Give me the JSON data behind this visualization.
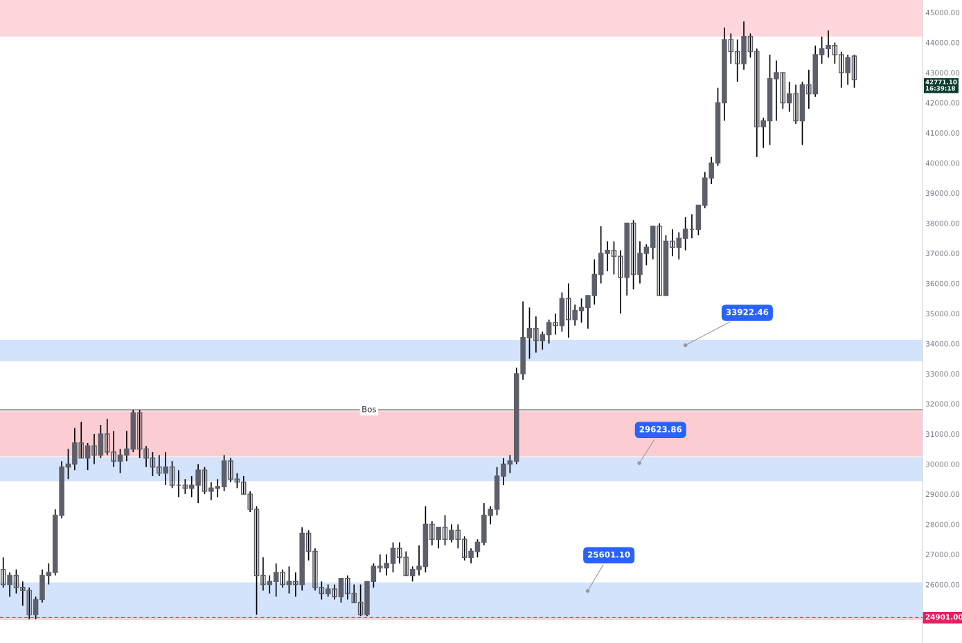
{
  "chart_data": {
    "type": "candlestick",
    "color": "#5d606b",
    "categories": [
      null,
      null,
      null,
      null,
      null,
      null,
      null,
      null,
      null,
      null,
      null,
      null,
      null,
      null,
      null,
      null,
      null,
      null,
      null,
      null,
      null,
      null,
      null,
      null,
      null,
      null,
      null,
      null,
      null,
      null,
      null,
      null,
      null,
      null,
      null,
      null,
      null,
      null,
      null,
      null,
      null,
      null,
      null,
      null,
      null,
      null,
      null,
      null,
      null,
      null,
      null,
      null,
      null,
      null,
      null,
      null,
      null,
      null,
      null,
      null,
      null,
      null,
      null,
      null,
      null,
      null,
      null,
      null,
      null,
      null,
      null,
      null,
      null,
      null,
      null,
      null,
      null,
      null,
      null,
      null,
      null,
      null,
      null,
      null,
      null,
      null,
      null,
      null,
      null,
      null,
      null,
      null,
      null,
      null,
      null,
      null,
      null,
      null,
      null,
      null,
      null,
      null,
      null,
      null,
      null,
      null,
      null,
      null,
      null,
      null,
      null,
      null,
      null,
      null,
      null,
      null,
      null,
      null,
      null,
      null,
      null,
      null,
      null,
      null,
      null,
      null,
      null,
      null,
      null,
      null,
      null,
      null,
      null,
      null,
      null,
      null,
      null,
      null,
      null,
      null,
      null,
      null
    ],
    "ohlc": [
      [
        26500,
        26900,
        25900,
        26000
      ],
      [
        26000,
        26400,
        25600,
        26300
      ],
      [
        26300,
        26500,
        25700,
        25900
      ],
      [
        25900,
        26100,
        25300,
        25800
      ],
      [
        25800,
        25900,
        24850,
        25000
      ],
      [
        25000,
        25600,
        24850,
        25500
      ],
      [
        25500,
        26500,
        25400,
        26300
      ],
      [
        26300,
        26700,
        26000,
        26400
      ],
      [
        26400,
        28500,
        26300,
        28300
      ],
      [
        28300,
        30100,
        28200,
        29900
      ],
      [
        29900,
        30500,
        29500,
        30000
      ],
      [
        30000,
        31200,
        29800,
        30700
      ],
      [
        30700,
        31400,
        30200,
        30200
      ],
      [
        30200,
        30700,
        29800,
        30600
      ],
      [
        30600,
        31000,
        30000,
        30300
      ],
      [
        30300,
        31300,
        30200,
        31000
      ],
      [
        31000,
        31500,
        30300,
        30400
      ],
      [
        30400,
        31100,
        29900,
        30100
      ],
      [
        30100,
        30500,
        29700,
        30300
      ],
      [
        30300,
        31100,
        30100,
        30500
      ],
      [
        30500,
        31800,
        30400,
        31700
      ],
      [
        31700,
        31800,
        30200,
        30500
      ],
      [
        30500,
        30600,
        29900,
        30200
      ],
      [
        30200,
        30400,
        29600,
        29900
      ],
      [
        29900,
        30300,
        29600,
        29700
      ],
      [
        29700,
        30400,
        29300,
        29900
      ],
      [
        29900,
        30100,
        29200,
        29300
      ],
      [
        29300,
        29800,
        28900,
        29300
      ],
      [
        29300,
        29500,
        29000,
        29200
      ],
      [
        29200,
        29600,
        28900,
        29300
      ],
      [
        29300,
        30000,
        28700,
        29800
      ],
      [
        29800,
        29900,
        29000,
        29100
      ],
      [
        29100,
        29400,
        28800,
        29200
      ],
      [
        29200,
        29500,
        28900,
        29250
      ],
      [
        29250,
        30300,
        29100,
        30100
      ],
      [
        30100,
        30200,
        29400,
        29500
      ],
      [
        29500,
        29700,
        29200,
        29400
      ],
      [
        29400,
        29600,
        29000,
        29000
      ],
      [
        29000,
        29100,
        28400,
        28500
      ],
      [
        28500,
        28600,
        25000,
        26300
      ],
      [
        26300,
        26900,
        25800,
        26000
      ],
      [
        26000,
        26300,
        25700,
        26100
      ],
      [
        26100,
        26700,
        25600,
        26400
      ],
      [
        26400,
        26500,
        25900,
        26000
      ],
      [
        26000,
        26600,
        25700,
        26100
      ],
      [
        26100,
        26400,
        25600,
        26000
      ],
      [
        26000,
        27900,
        25800,
        27700
      ],
      [
        27700,
        27800,
        26800,
        27100
      ],
      [
        27100,
        27200,
        25800,
        25900
      ],
      [
        25900,
        26100,
        25500,
        25700
      ],
      [
        25700,
        26000,
        25600,
        25850
      ],
      [
        25850,
        26000,
        25500,
        25600
      ],
      [
        25600,
        26200,
        25400,
        26200
      ],
      [
        26200,
        26300,
        25500,
        25700
      ],
      [
        25700,
        26000,
        25400,
        25400
      ],
      [
        25400,
        26000,
        24950,
        25000
      ],
      [
        25000,
        26100,
        24950,
        26100
      ],
      [
        26100,
        26700,
        25900,
        26600
      ],
      [
        26600,
        27000,
        26400,
        26550
      ],
      [
        26550,
        27000,
        26300,
        26700
      ],
      [
        26700,
        27400,
        26400,
        27200
      ],
      [
        27200,
        27400,
        26700,
        26900
      ],
      [
        26900,
        27100,
        26300,
        26300
      ],
      [
        26300,
        26600,
        26100,
        26500
      ],
      [
        26500,
        27300,
        26300,
        26600
      ],
      [
        26600,
        28600,
        26400,
        28000
      ],
      [
        28000,
        28100,
        27300,
        27500
      ],
      [
        27500,
        27900,
        27200,
        27900
      ],
      [
        27900,
        28300,
        27300,
        27500
      ],
      [
        27500,
        28000,
        27400,
        27800
      ],
      [
        27800,
        28000,
        27200,
        27500
      ],
      [
        27500,
        27600,
        26800,
        26900
      ],
      [
        26900,
        27200,
        26700,
        27100
      ],
      [
        27100,
        27500,
        26900,
        27400
      ],
      [
        27400,
        28700,
        27300,
        28300
      ],
      [
        28300,
        28600,
        28000,
        28500
      ],
      [
        28500,
        29900,
        28300,
        29600
      ],
      [
        29600,
        30200,
        29300,
        30000
      ],
      [
        30000,
        30300,
        29700,
        30100
      ],
      [
        30100,
        33200,
        30000,
        33000
      ],
      [
        33000,
        35400,
        32800,
        34200
      ],
      [
        34200,
        35200,
        33500,
        34500
      ],
      [
        34500,
        34900,
        33700,
        34100
      ],
      [
        34100,
        34400,
        33800,
        34300
      ],
      [
        34300,
        34800,
        34000,
        34700
      ],
      [
        34700,
        35000,
        34300,
        34600
      ],
      [
        34600,
        35700,
        34400,
        35500
      ],
      [
        35500,
        36000,
        34200,
        34800
      ],
      [
        34800,
        35300,
        34600,
        35100
      ],
      [
        35100,
        35500,
        34700,
        35200
      ],
      [
        35200,
        35600,
        34500,
        35600
      ],
      [
        35600,
        36800,
        35300,
        36300
      ],
      [
        36300,
        37900,
        36000,
        37000
      ],
      [
        37000,
        37400,
        36400,
        37100
      ],
      [
        37100,
        37400,
        36300,
        36900
      ],
      [
        36900,
        37100,
        35000,
        36200
      ],
      [
        36200,
        38000,
        35600,
        38000
      ],
      [
        38000,
        38100,
        35800,
        36300
      ],
      [
        36300,
        37400,
        36000,
        37000
      ],
      [
        37000,
        37300,
        36600,
        37200
      ],
      [
        37200,
        37900,
        36800,
        37900
      ],
      [
        37900,
        38000,
        35600,
        35600
      ],
      [
        35600,
        37600,
        35600,
        37400
      ],
      [
        37400,
        37800,
        36900,
        37200
      ],
      [
        37200,
        37700,
        36800,
        37500
      ],
      [
        37500,
        38200,
        37100,
        37800
      ],
      [
        37800,
        38300,
        37500,
        37800
      ],
      [
        37800,
        38600,
        37600,
        38600
      ],
      [
        38600,
        39700,
        38500,
        39500
      ],
      [
        39500,
        40200,
        39300,
        40000
      ],
      [
        40000,
        42500,
        39900,
        42000
      ],
      [
        42000,
        44500,
        41400,
        44100
      ],
      [
        44100,
        44300,
        43300,
        43700
      ],
      [
        43700,
        44100,
        42700,
        43300
      ],
      [
        43300,
        44700,
        43100,
        44200
      ],
      [
        44200,
        44300,
        43500,
        43700
      ],
      [
        43700,
        43800,
        40200,
        41200
      ],
      [
        41200,
        41500,
        40500,
        41400
      ],
      [
        41400,
        43600,
        40600,
        42800
      ],
      [
        42800,
        43400,
        41400,
        43000
      ],
      [
        43000,
        43000,
        41800,
        42000
      ],
      [
        42000,
        42700,
        41700,
        42300
      ],
      [
        42300,
        42600,
        41300,
        41400
      ],
      [
        41400,
        42700,
        40600,
        42600
      ],
      [
        42600,
        43100,
        41800,
        42300
      ],
      [
        42300,
        43900,
        42200,
        43600
      ],
      [
        43600,
        44200,
        43300,
        43800
      ],
      [
        43800,
        44400,
        43500,
        43900
      ],
      [
        43900,
        44000,
        43300,
        43600
      ],
      [
        43600,
        43700,
        42500,
        43000
      ],
      [
        43000,
        43600,
        42600,
        43500
      ],
      [
        43550,
        43600,
        42500,
        42771
      ],
      null,
      null,
      null,
      null,
      null,
      null,
      null,
      null,
      null,
      null
    ],
    "ylim": [
      24057,
      45414
    ],
    "yticks": [
      {
        "value": 26000,
        "label": "26000.00"
      },
      {
        "value": 27000,
        "label": "27000.00"
      },
      {
        "value": 28000,
        "label": "28000.00"
      },
      {
        "value": 29000,
        "label": "29000.00"
      },
      {
        "value": 30000,
        "label": "30000.00"
      },
      {
        "value": 31000,
        "label": "31000.00"
      },
      {
        "value": 32000,
        "label": "32000.00"
      },
      {
        "value": 33000,
        "label": "33000.00"
      },
      {
        "value": 34000,
        "label": "34000.00"
      },
      {
        "value": 35000,
        "label": "35000.00"
      },
      {
        "value": 36000,
        "label": "36000.00"
      },
      {
        "value": 37000,
        "label": "37000.00"
      },
      {
        "value": 38000,
        "label": "38000.00"
      },
      {
        "value": 39000,
        "label": "39000.00"
      },
      {
        "value": 40000,
        "label": "40000.00"
      },
      {
        "value": 41000,
        "label": "41000.00"
      },
      {
        "value": 42000,
        "label": "42000.00"
      },
      {
        "value": 43000,
        "label": "43000.00"
      },
      {
        "value": 44000,
        "label": "44000.00"
      },
      {
        "value": 45000,
        "label": "45000.00"
      }
    ],
    "bands": [
      {
        "axis": "y",
        "from": 44200,
        "to": 45414,
        "color": "#ffd6db"
      },
      {
        "axis": "y",
        "from": 30250,
        "to": 31750,
        "color": "#fbcdd2"
      },
      {
        "axis": "y",
        "from": 24814,
        "to": 25226,
        "color": "#fcd2d8"
      },
      {
        "axis": "y",
        "from": 33413,
        "to": 34125,
        "color": "#d3e3fb"
      },
      {
        "axis": "y",
        "from": 29429,
        "to": 30234,
        "color": "#d3e3fb"
      },
      {
        "axis": "y",
        "from": 24921,
        "to": 26071,
        "color": "#d3e3fb"
      }
    ],
    "ref_lines": [
      {
        "axis": "y",
        "value": 31800,
        "label": "Bos",
        "color": "#555555",
        "line_style": "solid"
      },
      {
        "axis": "y",
        "value": 24901,
        "label": "24901.00",
        "color": "#e91e63",
        "line_style": "dashed"
      }
    ],
    "annotations": [
      "33922.46",
      "29623.86",
      "25601.10",
      "42771.10\n16:39:18"
    ],
    "grid": false
  }
}
